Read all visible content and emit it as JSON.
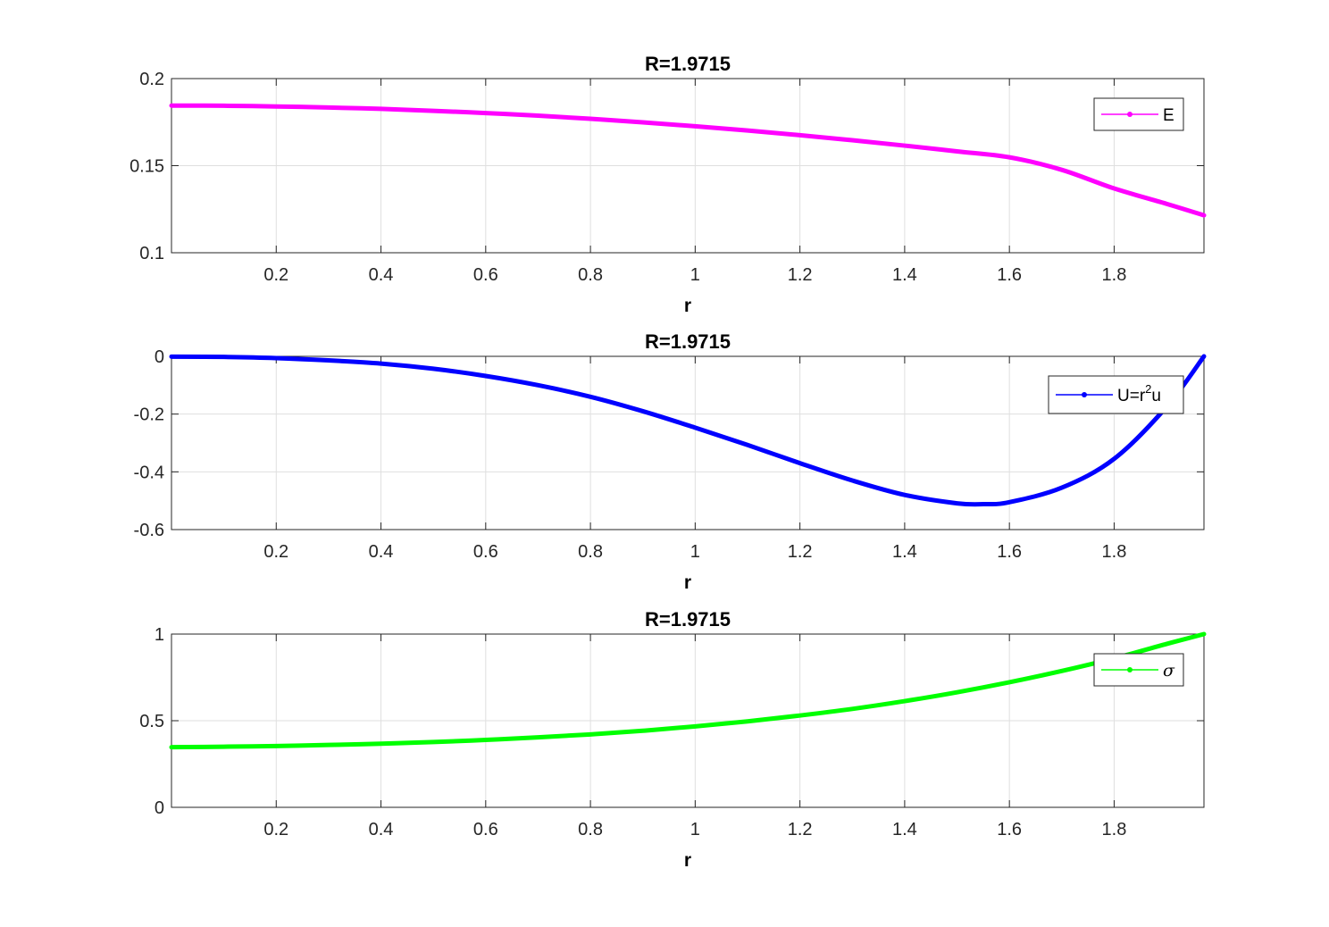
{
  "chart_data": [
    {
      "type": "line",
      "title": "R=1.9715",
      "xlabel": "r",
      "ylabel": "",
      "xlim": [
        0,
        1.9715
      ],
      "ylim": [
        0.1,
        0.2
      ],
      "xticks": [
        "0.2",
        "0.4",
        "0.6",
        "0.8",
        "1",
        "1.2",
        "1.4",
        "1.6",
        "1.8"
      ],
      "yticks": [
        "0.1",
        "0.15",
        "0.2"
      ],
      "grid": true,
      "legend_position": "top-right",
      "series": [
        {
          "name": "E",
          "color": "#ff00ff",
          "x": [
            0,
            0.1,
            0.2,
            0.3,
            0.4,
            0.5,
            0.6,
            0.7,
            0.8,
            0.9,
            1.0,
            1.1,
            1.2,
            1.3,
            1.4,
            1.5,
            1.6,
            1.7,
            1.8,
            1.9,
            1.9715
          ],
          "y": [
            0.1845,
            0.1844,
            0.184,
            0.1834,
            0.1826,
            0.1815,
            0.1802,
            0.1787,
            0.1769,
            0.1749,
            0.1726,
            0.1702,
            0.1675,
            0.1646,
            0.1615,
            0.1582,
            0.1548,
            0.1476,
            0.1369,
            0.1281,
            0.1215
          ]
        }
      ]
    },
    {
      "type": "line",
      "title": "R=1.9715",
      "xlabel": "r",
      "ylabel": "",
      "xlim": [
        0,
        1.9715
      ],
      "ylim": [
        -0.6,
        0
      ],
      "xticks": [
        "0.2",
        "0.4",
        "0.6",
        "0.8",
        "1",
        "1.2",
        "1.4",
        "1.6",
        "1.8"
      ],
      "yticks": [
        "-0.6",
        "-0.4",
        "-0.2",
        "0"
      ],
      "grid": true,
      "legend_position": "top-right",
      "series": [
        {
          "name": "U=r2u",
          "color": "#0000ff",
          "x": [
            0,
            0.1,
            0.2,
            0.3,
            0.4,
            0.5,
            0.6,
            0.7,
            0.8,
            0.9,
            1.0,
            1.1,
            1.2,
            1.3,
            1.4,
            1.5,
            1.55,
            1.6,
            1.7,
            1.8,
            1.9,
            1.9715
          ],
          "y": [
            -0.001,
            -0.002,
            -0.006,
            -0.014,
            -0.025,
            -0.043,
            -0.068,
            -0.1,
            -0.14,
            -0.19,
            -0.247,
            -0.307,
            -0.37,
            -0.43,
            -0.48,
            -0.509,
            -0.512,
            -0.505,
            -0.455,
            -0.355,
            -0.175,
            0.0
          ]
        }
      ]
    },
    {
      "type": "line",
      "title": "R=1.9715",
      "xlabel": "r",
      "ylabel": "",
      "xlim": [
        0,
        1.9715
      ],
      "ylim": [
        0,
        1
      ],
      "xticks": [
        "0.2",
        "0.4",
        "0.6",
        "0.8",
        "1",
        "1.2",
        "1.4",
        "1.6",
        "1.8"
      ],
      "yticks": [
        "0",
        "0.5",
        "1"
      ],
      "grid": true,
      "legend_position": "top-right",
      "series": [
        {
          "name": "σ",
          "color": "#00ff00",
          "x": [
            0,
            0.1,
            0.2,
            0.3,
            0.4,
            0.5,
            0.6,
            0.7,
            0.8,
            0.9,
            1.0,
            1.1,
            1.2,
            1.3,
            1.4,
            1.5,
            1.6,
            1.7,
            1.8,
            1.9,
            1.9715
          ],
          "y": [
            0.347,
            0.35,
            0.354,
            0.36,
            0.367,
            0.377,
            0.389,
            0.404,
            0.421,
            0.442,
            0.467,
            0.496,
            0.53,
            0.568,
            0.613,
            0.664,
            0.722,
            0.787,
            0.86,
            0.943,
            1.0
          ]
        }
      ]
    }
  ]
}
